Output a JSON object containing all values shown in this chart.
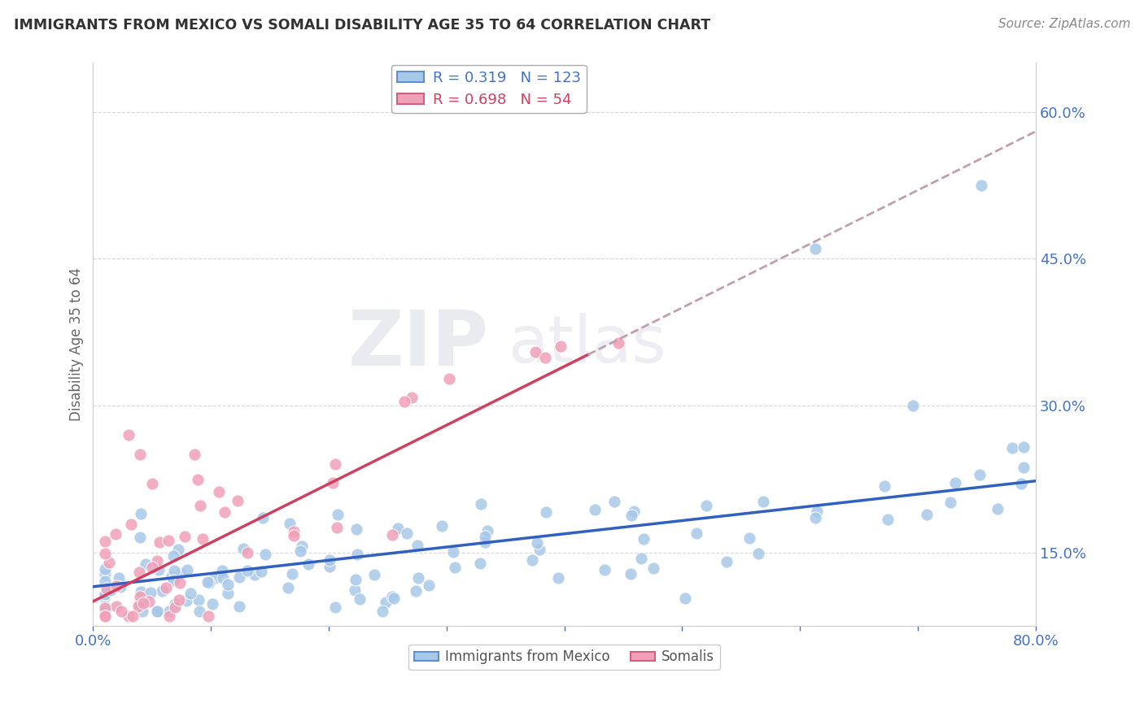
{
  "title": "IMMIGRANTS FROM MEXICO VS SOMALI DISABILITY AGE 35 TO 64 CORRELATION CHART",
  "source": "Source: ZipAtlas.com",
  "ylabel": "Disability Age 35 to 64",
  "xlim": [
    0.0,
    0.8
  ],
  "ylim": [
    0.075,
    0.65
  ],
  "yticks": [
    0.15,
    0.3,
    0.45,
    0.6
  ],
  "ytick_labels": [
    "15.0%",
    "30.0%",
    "45.0%",
    "60.0%"
  ],
  "mexico_R": 0.319,
  "mexico_N": 123,
  "somali_R": 0.698,
  "somali_N": 54,
  "mexico_color": "#a8c8e8",
  "somali_color": "#f0a0b8",
  "mexico_line_color": "#3060c0",
  "somali_line_color": "#d04060",
  "dashed_line_color": "#c0a0b0",
  "background_color": "#ffffff",
  "grid_color": "#d8d8d8",
  "tick_color": "#4472c4",
  "title_color": "#333333",
  "source_color": "#888888",
  "watermark_color": "#e8e8ec"
}
